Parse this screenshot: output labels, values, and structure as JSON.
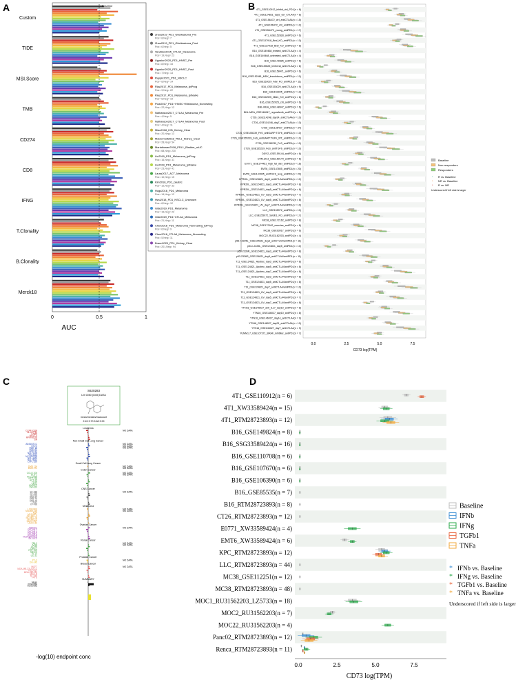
{
  "panels": {
    "A": "A",
    "B": "B",
    "C": "C",
    "D": "D"
  },
  "panel_a": {
    "xlabel": "AUC",
    "ticks": [
      "0",
      "0.5",
      "1"
    ],
    "baseline_label": "Baseline",
    "groups": [
      "Custom",
      "TIDE",
      "MSI.Score",
      "TMB",
      "CD274",
      "CD8",
      "IFNG",
      "T.Clonality",
      "B.Clonality",
      "Merck18"
    ],
    "bar_colors": [
      "#3a3a3a",
      "#9a9a9a",
      "#c92a2a",
      "#e8643c",
      "#f08a3c",
      "#f4b740",
      "#e5d545",
      "#b5d84a",
      "#7cc46a",
      "#4bb3a8",
      "#3c8fd4",
      "#3a5fb8",
      "#6a3ab0",
      "#b03aa0",
      "#2a9ad8",
      "#1c2a8a"
    ],
    "legend": [
      {
        "label": "Zhao2019_PD1_Glioblastoma_Pre",
        "sub": "Pos= 8,Neg= 7",
        "color": "#3a3a3a"
      },
      {
        "label": "Zhao2019_PD1_Glioblastoma_Post",
        "sub": "Pos= 6,Neg= 5",
        "color": "#7a7a7a"
      },
      {
        "label": "VanAllen2015_CTLA4_Melanoma",
        "sub": "Pos= 19,Neg= 23",
        "color": "#b0b0b0"
      },
      {
        "label": "Uppaluri2020_PD1_HNSC_Pre",
        "sub": "Pos= 8,Neg= 15",
        "color": "#8b1a1a"
      },
      {
        "label": "Uppaluri2020_PD1_HNSC_Post",
        "sub": "Pos= 7,Neg= 13",
        "color": "#c92a2a"
      },
      {
        "label": "Ruppin2021_PD1_NSCLC",
        "sub": "Pos= 8,Neg= 14",
        "color": "#e04a3a"
      },
      {
        "label": "Riaz2017_PD1_Melanoma_IpiProg",
        "sub": "Pos= 9,Neg= 22",
        "color": "#e8643c"
      },
      {
        "label": "Riaz2017_PD1_Melanoma_IpiNaive",
        "sub": "Pos= 6,Neg= 19",
        "color": "#f08a3c"
      },
      {
        "label": "Pizzi2017_PD1+/HNSC+/Melanoma_Nonresting",
        "sub": "Pos= 22,Neg= 12",
        "color": "#f6a84a"
      },
      {
        "label": "Nathanson2017_CTLA4_Melanoma_Pre",
        "sub": "Pos= 4,Neg= 5",
        "color": "#f4c47a"
      },
      {
        "label": "Nathanson2017_CTLA4_Melanoma_Post",
        "sub": "Pos= 4,Neg= 11",
        "color": "#e8cf80"
      },
      {
        "label": "Miao2018_ICB_Kidney_Clear",
        "sub": "Pos= 20,Neg= 13",
        "color": "#c8b23a"
      },
      {
        "label": "McDermott2018_PDL1_Kidney_Clear",
        "sub": "Pos= 28,Neg= 54",
        "color": "#a8a838"
      },
      {
        "label": "Mariathasan2018_PDL1_Bladder_mUC",
        "sub": "Pos= 68,Neg= 230",
        "color": "#6a8a2a"
      },
      {
        "label": "Liu2019_PD1_Melanoma_IpiProg",
        "sub": "Pos= 16,Neg= 31",
        "color": "#8abc4a"
      },
      {
        "label": "Liu2019_PD1_Melanoma_IpiNaive",
        "sub": "Pos= 23,Neg= 41",
        "color": "#b5d84a"
      },
      {
        "label": "Lauss2017_ACT_Melanoma",
        "sub": "Pos= 10,Neg= 15",
        "color": "#4aa84a"
      },
      {
        "label": "Kim2018_PD1_Gastric",
        "sub": "Pos= 12,Neg= 33",
        "color": "#2a8a5a"
      },
      {
        "label": "Hugo2016_PD1_Melanoma",
        "sub": "Pos= 14,Neg= 12",
        "color": "#4bb3a8"
      },
      {
        "label": "Hwu2018_PD1_NSCLC_Unknown",
        "sub": "Pos= 8,Neg= 12",
        "color": "#3a9ab0"
      },
      {
        "label": "Gide2019_PD1_Melanoma",
        "sub": "Pos= 19,Neg= 22",
        "color": "#3c8fd4"
      },
      {
        "label": "Gide2019_PD1+CTLA4_Melanoma",
        "sub": "Pos= 21,Neg= 11",
        "color": "#2a6ab8"
      },
      {
        "label": "Chen2016_PD1_Melanoma_Nonresting_IpiProg",
        "sub": "Pos= 6,Neg= 9",
        "color": "#3a4aa8"
      },
      {
        "label": "Chen2016_CTLA4_Melanoma_Nonresting",
        "sub": "Pos= 5,Neg= 11",
        "color": "#2a2a8a"
      },
      {
        "label": "Braun2020_PD1_Kidney_Clear",
        "sub": "Pos= 201,Neg= 94",
        "color": "#8a4ab0"
      }
    ]
  },
  "panel_b": {
    "xlabel": "CD73 log(TPM)",
    "ticks": [
      "0.0",
      "2.5",
      "5.0",
      "7.5"
    ],
    "rows": [
      "4T1_GSE110912_inhibit_ctrl_PD1(n = 8)",
      "4T1_GSE124821_day2_ctrl_CTLA4(n = 6)",
      "4T1_GSE156472_ctrl_antiCTLA4(n = 15)",
      "4T1_GSE156472_ctrl_antiPD1(n = 12)",
      "4T1_GSE156472_young_antiPD1(n = 17)",
      "4T1_GSE152828_antiPD1(n = 6)",
      "4T1_GSE137918_Braf_KO_antiPD1(n = 10)",
      "4T1_GSE137918_Braf_KO_antiPD1(n = 8)",
      "B16_GSE149468_treated_antiCTLA4(n = 4)",
      "B16_GSE149468_untreated_antiCTLA4(n = 4)",
      "B16_GSE149825_antiPD1(n = 6)",
      "B16_GSE149825_lentiviral_antiCTLA4(n = 6)",
      "B16_GSE158471_antiPD1(n = 6)",
      "B16_GSE152481_MDK_knockdown_antiPD1(n = 10)",
      "B16_GSE153029_Alar_KO_antiPD1(n = 11)",
      "B16_GSE153029_antiCTLA4(n = 9)",
      "B16_GSE153925_antiPD1(n = 12)",
      "B16_GSE152925_Nfat1_KO_antiPD1(n = 6)",
      "B16_GSE152925_ctrl_antiPD1(n = 6)",
      "BNL-MEA_GSE148947_antiPD1(n = 6)",
      "BNL-MEA_GSE148947_regorafenib_antiPD1(n = 6)",
      "CT26_GSE114248_day14_antiCTLA4(n = 10)",
      "CT26_GSE114248_day7_antiCTLA4(n = 10)",
      "CT26_GSE135427_antiPD1(n = 34)",
      "CT26_GSE155239_FeS_antiGARP:TGFb_antiPD1(n = 10)",
      "CT26_GSE155239_FeS_antiGARP:TGFb_WT_antiPD1(n = 10)",
      "CT26_GSE155239_FeS_antiPD1(n = 10)",
      "CT26_GSE155239_FeS_antiTGFb_antiPD1(n = 10)",
      "D5/Y2_GSE159144_antiPD1(n = 6)",
      "D4M.3A.3_GSE159144_antiPD1(n = 6)",
      "E0771_GSE174451_high_fat_diet_antiPD1(n = 16)",
      "EMT6_GSE147805_antiPD1(n = 20)",
      "EMT6_GSE147805_antiTGFb_resp_antiPD1(n = 20)",
      "KPR2IIL_GSE124821_day0_antiCTLA4/antiPD1(n = 10)",
      "KPR2IIL_GSE124821_day3_antiCTLA4/antiPD1(n = 8)",
      "KPR2IIL_GSE124821_day5_antiCTLA4/antiPD1(n = 8)",
      "KPR2IIL_GSE124821_UV_day3_antiCTLA4/antiPD1(n = 7)",
      "KPR2IIL_GSE124821_UV_day5_antiCTLA4/antiPD1(n = 8)",
      "KPR2IIL_GSE124821_UV_day7_antiCTLA4/antiPD1(n = 10)",
      "LLC_GSE155972_antiPD1(n = 10)",
      "LLC_GSE155972_Setdb1_KO_antiPD1(n = 17)",
      "MC38_GSE172162_antiPD1(n = 8)",
      "MC38_GSE172162_exercise_antiPD1(n = 8)",
      "MC38_GSE93017_antiPD1(n = 6)",
      "MOC22_RU31162203_antiPD1(n = 4)",
      "p53-/-2225L_GSE124821_day3_antiCTLA4/antiPD1(n = 11)",
      "p53-/-2225L_GSE124821_day5_antiPD1(n = 10)",
      "p53-2336R_GSE124821_day3_antiCTLA4/antiPD1(n = 8)",
      "p53-2336R_GSE124821_day5_antiCTLA4/antiPD1(n = 11)",
      "T11_GSE124821_Apobec_day3_antiCTLA4/antiPD1(n = 8)",
      "T11_GSE124821_Apobec_day5_antiCTLA4/antiPD1(n = 8)",
      "T11_GSE124821_Apobec_day7_antiCTLA4/antiPD1(n = 8)",
      "T11_GSE124821_day3_antiCTLA4/antiPD1(n = 8)",
      "T11_GSE124821_day5_antiCTLA4/antiPD1(n = 8)",
      "T11_GSE124821_day7_antiCTLA4/antiPD1(n = 10)",
      "T11_GSE124821_UV_day3_antiCTLA4/antiPD1(n = 8)",
      "T11_GSE124821_UV_day5_antiCTLA4/antiPD1(n = 7)",
      "T11_GSE124821_UV_day7_antiCTLA4/antiPD1(n = 8)",
      "YTN16_GSE146027_anti_IL17_day10_antiPD1(n = 8)",
      "YTN16_GSE146027_day10_antiPD1(n = 8)",
      "YTN16_GSE146027_day14_antiCTLA4(n = 9)",
      "YTN16_GSE146027_day21_antiCTLA4(n = 10)",
      "YTN16_GSE146027_day7_antiCTLA4(n = 9)",
      "YUMM1.7_GSE107371_BRAF_inhibitor_antiPD1(n = 7)"
    ],
    "legend": {
      "title1": "Baseline",
      "items": [
        "Baseline",
        "Non-responders",
        "Responders"
      ],
      "stars": [
        "R vs. Baseline",
        "NR vs. Baseline",
        "R vs. NR"
      ],
      "note": "Underscored if left side is larger"
    },
    "colors": {
      "Baseline": "#bdbdbd",
      "Non-responders": "#f4c27a",
      "Responders": "#8fcf7a",
      "star1": "#4bb3a8",
      "star2": "#f08a3c",
      "star3": "#c92a2a"
    }
  },
  "panel_c": {
    "header_id": "S620283",
    "header_sub": "LM GI50 (Unit) DATA",
    "header_extra": "mean/median/maxcount",
    "header_vals": "2.45   3.70   5.68   3.99",
    "groups": [
      {
        "name": "Leukemia",
        "color": "#c92a2a",
        "lines": [
          "CCRF-CEM",
          "HL-60(TB)",
          "K-562",
          "MOLT-4",
          "RPMI-8226",
          "SR"
        ],
        "nodata": [
          "NO DATA"
        ]
      },
      {
        "name": "Non-Small Cell Lung Cancer",
        "color": "#2a4ab8",
        "lines": [
          "A549/ATCC",
          "EKVX",
          "HOP-18",
          "HOP-62",
          "HOP-92",
          "NCI-H226",
          "NCI-H23",
          "NCI-H322M",
          "NCI-H460",
          "NCI-H522",
          "LXFL 529"
        ],
        "nodata": [
          "NO DATA",
          "NO DATA",
          "NO DATA"
        ]
      },
      {
        "name": "Small Cell Lung Cancer",
        "color": "#e8a030",
        "lines": [
          "DMS 114",
          "DMS 273"
        ],
        "nodata": [
          "NO DATA",
          "NO DATA"
        ]
      },
      {
        "name": "Colon Cancer",
        "color": "#4aa84a",
        "lines": [
          "COLO 205",
          "DLD-1",
          "HCC-2998",
          "HCT-116",
          "HCT-15",
          "HT29",
          "KM12",
          "KM20L2",
          "SW-620"
        ],
        "nodata": [
          "NO DATA",
          "NO DATA"
        ]
      },
      {
        "name": "CNS Cancer",
        "color": "#5a5a5a",
        "lines": [
          "SF-268",
          "SF-295",
          "SF-539",
          "SNB-19",
          "SNB-75",
          "SNB-78",
          "U251",
          "XF 498"
        ],
        "nodata": [
          "NO DATA"
        ]
      },
      {
        "name": "Melanoma",
        "color": "#e8a030",
        "lines": [
          "LOX IMVI",
          "MALME-3M",
          "M14",
          "M19-MEL",
          "SK-MEL-2",
          "SK-MEL-28",
          "SK-MEL-5",
          "UACC-257",
          "UACC-62"
        ],
        "nodata": [
          "NO DATA",
          "NO DATA"
        ]
      },
      {
        "name": "Ovarian Cancer",
        "color": "#a03ab0",
        "lines": [
          "IGROV1",
          "OVCAR-3",
          "OVCAR-4",
          "OVCAR-5",
          "OVCAR-8",
          "NCI/ADR-RES",
          "SK-OV-3"
        ],
        "nodata": [
          "NO DATA"
        ]
      },
      {
        "name": "Renal Cancer",
        "color": "#4aa84a",
        "lines": [
          "786-0",
          "A498",
          "ACHN",
          "CAKI-1",
          "RXF 393",
          "SN12C",
          "TK-10",
          "UO-31"
        ],
        "nodata": [
          "NO DATA",
          "NO DATA"
        ]
      },
      {
        "name": "Prostate Cancer",
        "color": "#e8c030",
        "lines": [
          "PC-3",
          "DU-145"
        ],
        "nodata": [
          "NO DATA"
        ]
      },
      {
        "name": "Breast Cancer",
        "color": "#e86a6a",
        "lines": [
          "MCF7",
          "MDA-MB-231/ATCC",
          "HS 578T",
          "MDA-MB-435",
          "MDA-N",
          "BT-549",
          "T-47D"
        ],
        "nodata": [
          "NO DATA"
        ]
      },
      {
        "name": "SUMMARY",
        "color": "#222222",
        "lines": [
          "Mean",
          "min/Delta",
          "max/Delta"
        ],
        "nodata": []
      }
    ],
    "xlabel": "-log(10) endpoint conc"
  },
  "panel_d": {
    "xlabel": "CD73 log(TPM)",
    "ticks": [
      "0.0",
      "2.5",
      "5.0",
      "7.5"
    ],
    "legend_box": [
      "Baseline",
      "IFNb",
      "IFNg",
      "TGFb1",
      "TNFa"
    ],
    "legend_star": [
      "IFNb vs. Baseline",
      "IFNg vs. Baseline",
      "TGFb1 vs. Baseline",
      "TNFa vs. Baseline"
    ],
    "note": "Underscored if left side is larger",
    "colors": {
      "Baseline": "#bdbdbd",
      "IFNb": "#3c8fd4",
      "IFNg": "#2aa84a",
      "TGFb1": "#e8643c",
      "TNFa": "#f2a93c"
    }
  },
  "chart_data": [
    {
      "type": "bar",
      "panel": "A",
      "orientation": "horizontal",
      "xlabel": "AUC",
      "xlim": [
        0,
        1
      ],
      "categories": [
        "Custom",
        "TIDE",
        "MSI.Score",
        "TMB",
        "CD274",
        "CD8",
        "IFNG",
        "T.Clonality",
        "B.Clonality",
        "Merck18"
      ],
      "values_by_group": [
        [
          0.55,
          0.62,
          0.48,
          0.7,
          0.58,
          0.66,
          0.52,
          0.61,
          0.57,
          0.49,
          0.63,
          0.55,
          0.6,
          0.53,
          0.58,
          0.5
        ],
        [
          0.6,
          0.55,
          0.65,
          0.5,
          0.62,
          0.58,
          0.53,
          0.66,
          0.52,
          0.6,
          0.57,
          0.48,
          0.64,
          0.55,
          0.51,
          0.59
        ],
        [
          0.48,
          0.52,
          0.58,
          0.55,
          0.9,
          0.5,
          0.6,
          0.46,
          0.55,
          0.5,
          0.53,
          0.49,
          0.57,
          0.52,
          0.48,
          0.54
        ],
        [
          0.5,
          0.52,
          0.55,
          0.6,
          0.48,
          0.53,
          0.57,
          0.5,
          0.52,
          0.55,
          0.49,
          0.58,
          0.51,
          0.53,
          0.5,
          0.56
        ],
        [
          0.62,
          0.58,
          0.65,
          0.55,
          0.6,
          0.63,
          0.57,
          0.66,
          0.6,
          0.69,
          0.56,
          0.61,
          0.59,
          0.64,
          0.57,
          0.6
        ],
        [
          0.65,
          0.6,
          0.68,
          0.62,
          0.7,
          0.58,
          0.66,
          0.61,
          0.72,
          0.6,
          0.67,
          0.75,
          0.63,
          0.69,
          0.62,
          0.66
        ],
        [
          0.63,
          0.61,
          0.66,
          0.58,
          0.69,
          0.62,
          0.6,
          0.71,
          0.65,
          0.7,
          0.68,
          0.74,
          0.6,
          0.67,
          0.72,
          0.64
        ],
        [
          0.55,
          0.5,
          0.52,
          0.58,
          0.6,
          0.48,
          0.54,
          0.62,
          0.5,
          0.56,
          0.53,
          0.59,
          0.51,
          0.57,
          0.55,
          0.52
        ],
        [
          0.48,
          0.52,
          0.5,
          0.55,
          0.46,
          0.53,
          0.5,
          0.58,
          0.49,
          0.54,
          0.51,
          0.56,
          0.5,
          0.53,
          0.49,
          0.55
        ],
        [
          0.62,
          0.6,
          0.66,
          0.58,
          0.64,
          0.61,
          0.68,
          0.63,
          0.7,
          0.62,
          0.72,
          0.65,
          0.6,
          0.69,
          0.73,
          0.66
        ]
      ],
      "baseline": 0.5
    },
    {
      "type": "box",
      "panel": "D",
      "xlabel": "CD73 log(TPM)",
      "xlim": [
        0,
        9.5
      ],
      "categories": [
        "4T1_GSE110912(n = 6)",
        "4T1_XW33589424(n = 15)",
        "4T1_RTM28723893(n = 12)",
        "B16_GSE149824(n = 8)",
        "B16_SSG33589424(n = 16)",
        "B16_GSE110708(n = 6)",
        "B16_GSE107670(n = 6)",
        "B16_GSE106390(n = 6)",
        "B16_GSE85535(n = 7)",
        "B16_RTM28723893(n = 8)",
        "CT26_RTM28723893(n = 12)",
        "E0771_XW33589424(n = 4)",
        "EMT6_XW33589424(n = 6)",
        "KPC_RTM28723893(n = 12)",
        "LLC_RTM28723893(n = 44)",
        "MC38_GSE112251(n = 12)",
        "MC38_RTM28723893(n = 48)",
        "MOC1_RU31562203_LZ5733(n = 18)",
        "MOC2_RU31562203(n = 7)",
        "MOC22_RU31562203(n = 4)",
        "Panc02_RTM28723893(n = 12)",
        "Renca_RTM28723893(n = 11)"
      ],
      "series": [
        {
          "name": "Baseline",
          "medians": [
            7.0,
            5.6,
            5.8,
            0.1,
            0.1,
            0.1,
            0.1,
            0.1,
            0.1,
            0.1,
            0.1,
            null,
            3.0,
            5.4,
            0.1,
            0.1,
            0.1,
            3.5,
            2.2,
            null,
            0.3,
            0.2
          ]
        },
        {
          "name": "IFNb",
          "medians": [
            null,
            null,
            5.9,
            null,
            null,
            null,
            null,
            null,
            null,
            null,
            null,
            null,
            null,
            5.6,
            null,
            null,
            null,
            null,
            null,
            null,
            0.5,
            0.4
          ]
        },
        {
          "name": "IFNg",
          "medians": [
            null,
            5.7,
            5.6,
            0.1,
            0.1,
            0.1,
            0.1,
            0.1,
            null,
            null,
            null,
            3.5,
            3.5,
            5.7,
            null,
            null,
            null,
            3.6,
            2.0,
            5.8,
            1.0,
            0.5
          ]
        },
        {
          "name": "TGFb1",
          "medians": [
            8.0,
            null,
            null,
            null,
            null,
            null,
            null,
            null,
            null,
            null,
            null,
            null,
            null,
            5.2,
            null,
            null,
            null,
            null,
            null,
            null,
            0.8,
            0.3
          ]
        },
        {
          "name": "TNFa",
          "medians": [
            null,
            null,
            6.0,
            null,
            null,
            null,
            null,
            null,
            null,
            null,
            null,
            null,
            null,
            5.4,
            null,
            null,
            null,
            null,
            null,
            null,
            0.7,
            0.4
          ]
        }
      ]
    }
  ]
}
